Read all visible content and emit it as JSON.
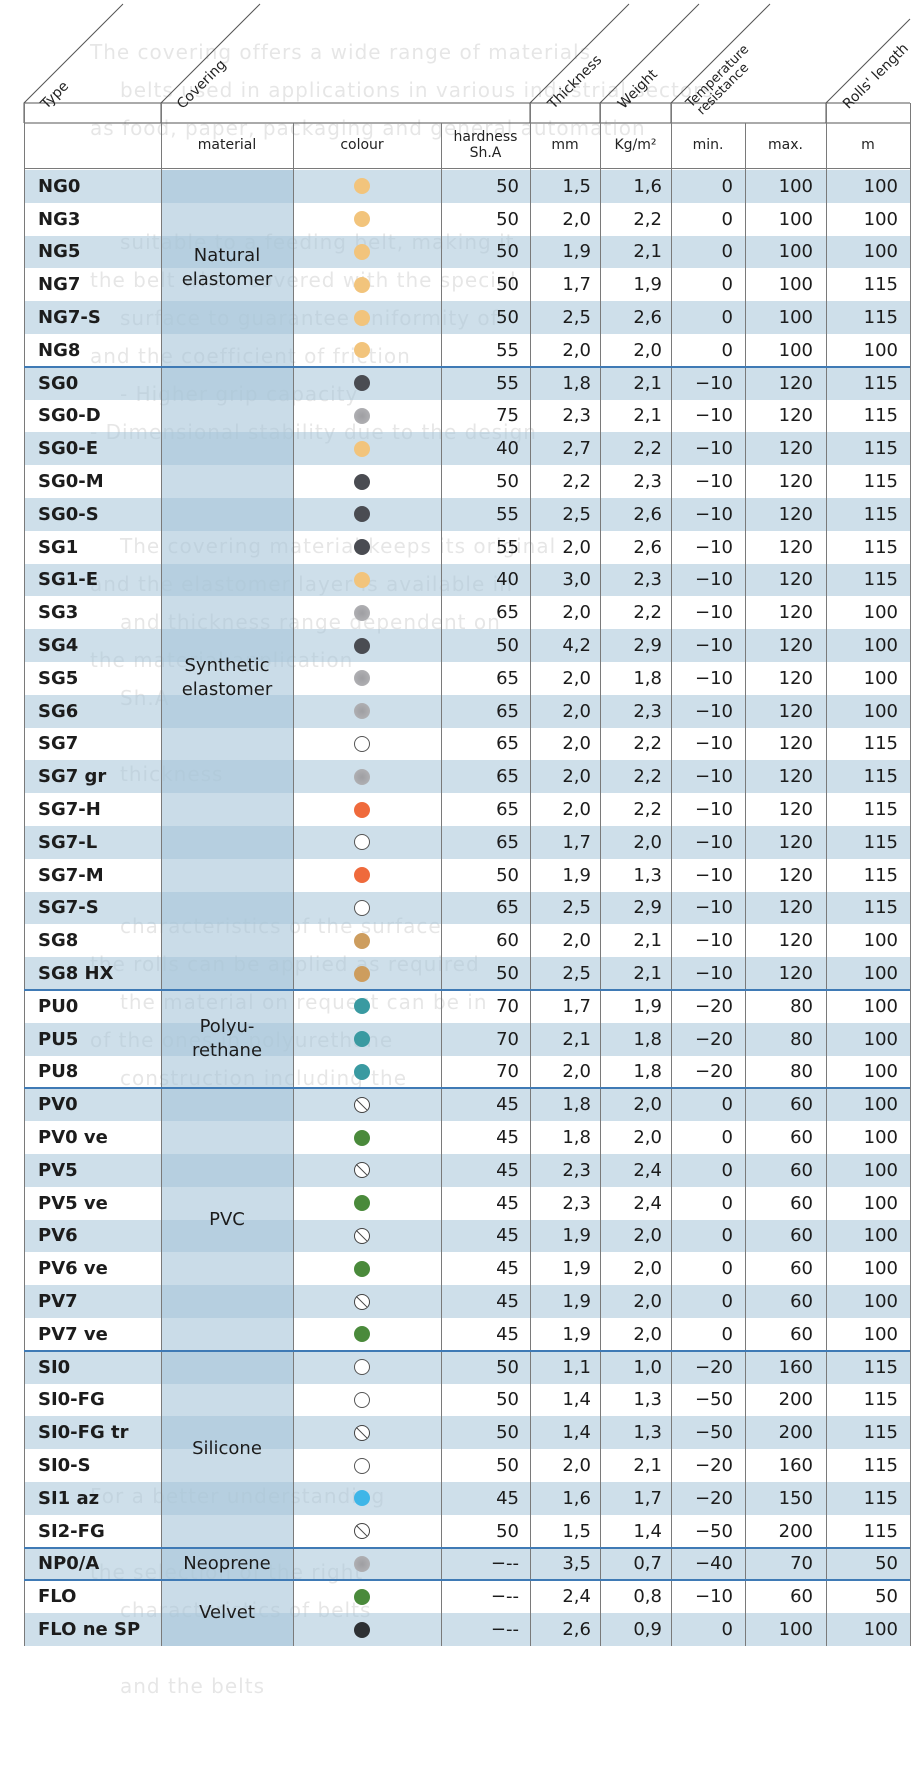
{
  "background_text": [
    "The covering offers a wide range of materials",
    "belts used in applications in various industrial sectors",
    "as food, paper, packaging and general automation",
    "",
    "",
    "suitable to a feeding belt, making it",
    "the belt when covered with the special",
    "surface to guarantee uniformity of",
    "and the coefficient of friction",
    "- Higher grip capacity",
    "- Dimensional stability due to the design",
    "",
    "",
    "The covering material keeps its original",
    "and the elastomer layer is available in",
    "and thickness range dependent on",
    "the material application",
    "Sh.A",
    "",
    "thickness",
    "",
    "",
    "",
    "characteristics of the surface",
    "the rolls can be applied as required",
    "the material on request can be in",
    "of the ones in polyurethane",
    "construction including the",
    "",
    "",
    "",
    "",
    "",
    "",
    "",
    "",
    "",
    "",
    "For a better understanding",
    "",
    "the selection of the right",
    "characteristics of belts",
    "",
    "and the belts"
  ],
  "header": {
    "type": "Type",
    "covering": "Covering",
    "thickness": "Thickness",
    "weight": "Weight",
    "temperature": "Temperature resistance",
    "rolls_length": "Rolls' length"
  },
  "subheader": {
    "material": "material",
    "colour": "colour",
    "hardness": "hardness Sh.A",
    "thickness_unit": "mm",
    "weight_unit": "Kg/m²",
    "min": "min.",
    "max": "max.",
    "length_unit": "m"
  },
  "groups": [
    {
      "label": "Natural elastomer",
      "start": 0,
      "end": 5
    },
    {
      "label": "Synthetic elastomer",
      "start": 6,
      "end": 24
    },
    {
      "label": "Polyu-rethane",
      "start": 25,
      "end": 27
    },
    {
      "label": "PVC",
      "start": 28,
      "end": 35
    },
    {
      "label": "Silicone",
      "start": 36,
      "end": 41
    },
    {
      "label": "Neoprene",
      "start": 42,
      "end": 42
    },
    {
      "label": "Velvet",
      "start": 43,
      "end": 44
    }
  ],
  "swatch_colors": {
    "beige": "#f2c47c",
    "dark": "#4a4c52",
    "gray": "#a8a8ab",
    "white": "#ffffff",
    "orange": "#ef6a3c",
    "tan": "#cd9d5e",
    "teal": "#3a9aa1",
    "none": "#ffffff",
    "green": "#4a8a3b",
    "lightblue": "#3eb6e8",
    "black": "#2e3134"
  },
  "rows": [
    {
      "type": "NG0",
      "colour": "beige",
      "hardness": "50",
      "mm": "1,5",
      "kg": "1,6",
      "min": "0",
      "max": "100",
      "m": "100"
    },
    {
      "type": "NG3",
      "colour": "beige",
      "hardness": "50",
      "mm": "2,0",
      "kg": "2,2",
      "min": "0",
      "max": "100",
      "m": "100"
    },
    {
      "type": "NG5",
      "colour": "beige",
      "hardness": "50",
      "mm": "1,9",
      "kg": "2,1",
      "min": "0",
      "max": "100",
      "m": "100"
    },
    {
      "type": "NG7",
      "colour": "beige",
      "hardness": "50",
      "mm": "1,7",
      "kg": "1,9",
      "min": "0",
      "max": "100",
      "m": "115"
    },
    {
      "type": "NG7-S",
      "colour": "beige",
      "hardness": "50",
      "mm": "2,5",
      "kg": "2,6",
      "min": "0",
      "max": "100",
      "m": "115"
    },
    {
      "type": "NG8",
      "colour": "beige",
      "hardness": "55",
      "mm": "2,0",
      "kg": "2,0",
      "min": "0",
      "max": "100",
      "m": "100"
    },
    {
      "type": "SG0",
      "colour": "dark",
      "hardness": "55",
      "mm": "1,8",
      "kg": "2,1",
      "min": "-10",
      "max": "120",
      "m": "115"
    },
    {
      "type": "SG0-D",
      "colour": "gray",
      "hardness": "75",
      "mm": "2,3",
      "kg": "2,1",
      "min": "-10",
      "max": "120",
      "m": "115"
    },
    {
      "type": "SG0-E",
      "colour": "beige",
      "hardness": "40",
      "mm": "2,7",
      "kg": "2,2",
      "min": "-10",
      "max": "120",
      "m": "115"
    },
    {
      "type": "SG0-M",
      "colour": "dark",
      "hardness": "50",
      "mm": "2,2",
      "kg": "2,3",
      "min": "-10",
      "max": "120",
      "m": "115"
    },
    {
      "type": "SG0-S",
      "colour": "dark",
      "hardness": "55",
      "mm": "2,5",
      "kg": "2,6",
      "min": "-10",
      "max": "120",
      "m": "115"
    },
    {
      "type": "SG1",
      "colour": "dark",
      "hardness": "55",
      "mm": "2,0",
      "kg": "2,6",
      "min": "-10",
      "max": "120",
      "m": "115"
    },
    {
      "type": "SG1-E",
      "colour": "beige",
      "hardness": "40",
      "mm": "3,0",
      "kg": "2,3",
      "min": "-10",
      "max": "120",
      "m": "115"
    },
    {
      "type": "SG3",
      "colour": "gray",
      "hardness": "65",
      "mm": "2,0",
      "kg": "2,2",
      "min": "-10",
      "max": "120",
      "m": "100"
    },
    {
      "type": "SG4",
      "colour": "dark",
      "hardness": "50",
      "mm": "4,2",
      "kg": "2,9",
      "min": "-10",
      "max": "120",
      "m": "100"
    },
    {
      "type": "SG5",
      "colour": "gray",
      "hardness": "65",
      "mm": "2,0",
      "kg": "1,8",
      "min": "-10",
      "max": "120",
      "m": "100"
    },
    {
      "type": "SG6",
      "colour": "gray",
      "hardness": "65",
      "mm": "2,0",
      "kg": "2,3",
      "min": "-10",
      "max": "120",
      "m": "100"
    },
    {
      "type": "SG7",
      "colour": "white",
      "hardness": "65",
      "mm": "2,0",
      "kg": "2,2",
      "min": "-10",
      "max": "120",
      "m": "115"
    },
    {
      "type": "SG7 gr",
      "colour": "gray",
      "hardness": "65",
      "mm": "2,0",
      "kg": "2,2",
      "min": "-10",
      "max": "120",
      "m": "115"
    },
    {
      "type": "SG7-H",
      "colour": "orange",
      "hardness": "65",
      "mm": "2,0",
      "kg": "2,2",
      "min": "-10",
      "max": "120",
      "m": "115"
    },
    {
      "type": "SG7-L",
      "colour": "white",
      "hardness": "65",
      "mm": "1,7",
      "kg": "2,0",
      "min": "-10",
      "max": "120",
      "m": "115"
    },
    {
      "type": "SG7-M",
      "colour": "orange",
      "hardness": "50",
      "mm": "1,9",
      "kg": "1,3",
      "min": "-10",
      "max": "120",
      "m": "115"
    },
    {
      "type": "SG7-S",
      "colour": "white",
      "hardness": "65",
      "mm": "2,5",
      "kg": "2,9",
      "min": "-10",
      "max": "120",
      "m": "115"
    },
    {
      "type": "SG8",
      "colour": "tan",
      "hardness": "60",
      "mm": "2,0",
      "kg": "2,1",
      "min": "-10",
      "max": "120",
      "m": "100"
    },
    {
      "type": "SG8 HX",
      "colour": "tan",
      "hardness": "50",
      "mm": "2,5",
      "kg": "2,1",
      "min": "-10",
      "max": "120",
      "m": "100"
    },
    {
      "type": "PU0",
      "colour": "teal",
      "hardness": "70",
      "mm": "1,7",
      "kg": "1,9",
      "min": "-20",
      "max": "80",
      "m": "100"
    },
    {
      "type": "PU5",
      "colour": "teal",
      "hardness": "70",
      "mm": "2,1",
      "kg": "1,8",
      "min": "-20",
      "max": "80",
      "m": "100"
    },
    {
      "type": "PU8",
      "colour": "teal",
      "hardness": "70",
      "mm": "2,0",
      "kg": "1,8",
      "min": "-20",
      "max": "80",
      "m": "100"
    },
    {
      "type": "PV0",
      "colour": "none",
      "hardness": "45",
      "mm": "1,8",
      "kg": "2,0",
      "min": "0",
      "max": "60",
      "m": "100"
    },
    {
      "type": "PV0 ve",
      "colour": "green",
      "hardness": "45",
      "mm": "1,8",
      "kg": "2,0",
      "min": "0",
      "max": "60",
      "m": "100"
    },
    {
      "type": "PV5",
      "colour": "none",
      "hardness": "45",
      "mm": "2,3",
      "kg": "2,4",
      "min": "0",
      "max": "60",
      "m": "100"
    },
    {
      "type": "PV5 ve",
      "colour": "green",
      "hardness": "45",
      "mm": "2,3",
      "kg": "2,4",
      "min": "0",
      "max": "60",
      "m": "100"
    },
    {
      "type": "PV6",
      "colour": "none",
      "hardness": "45",
      "mm": "1,9",
      "kg": "2,0",
      "min": "0",
      "max": "60",
      "m": "100"
    },
    {
      "type": "PV6 ve",
      "colour": "green",
      "hardness": "45",
      "mm": "1,9",
      "kg": "2,0",
      "min": "0",
      "max": "60",
      "m": "100"
    },
    {
      "type": "PV7",
      "colour": "none",
      "hardness": "45",
      "mm": "1,9",
      "kg": "2,0",
      "min": "0",
      "max": "60",
      "m": "100"
    },
    {
      "type": "PV7 ve",
      "colour": "green",
      "hardness": "45",
      "mm": "1,9",
      "kg": "2,0",
      "min": "0",
      "max": "60",
      "m": "100"
    },
    {
      "type": "SI0",
      "colour": "white",
      "hardness": "50",
      "mm": "1,1",
      "kg": "1,0",
      "min": "-20",
      "max": "160",
      "m": "115"
    },
    {
      "type": "SI0-FG",
      "colour": "white",
      "hardness": "50",
      "mm": "1,4",
      "kg": "1,3",
      "min": "-50",
      "max": "200",
      "m": "115"
    },
    {
      "type": "SI0-FG tr",
      "colour": "none",
      "hardness": "50",
      "mm": "1,4",
      "kg": "1,3",
      "min": "-50",
      "max": "200",
      "m": "115"
    },
    {
      "type": "SI0-S",
      "colour": "white",
      "hardness": "50",
      "mm": "2,0",
      "kg": "2,1",
      "min": "-20",
      "max": "160",
      "m": "115"
    },
    {
      "type": "SI1 az",
      "colour": "lightblue",
      "hardness": "45",
      "mm": "1,6",
      "kg": "1,7",
      "min": "-20",
      "max": "150",
      "m": "115"
    },
    {
      "type": "SI2-FG",
      "colour": "none",
      "hardness": "50",
      "mm": "1,5",
      "kg": "1,4",
      "min": "-50",
      "max": "200",
      "m": "115"
    },
    {
      "type": "NP0/A",
      "colour": "gray",
      "hardness": "---",
      "mm": "3,5",
      "kg": "0,7",
      "min": "-40",
      "max": "70",
      "m": "50"
    },
    {
      "type": "FLO",
      "colour": "green",
      "hardness": "---",
      "mm": "2,4",
      "kg": "0,8",
      "min": "-10",
      "max": "60",
      "m": "50"
    },
    {
      "type": "FLO ne SP",
      "colour": "black",
      "hardness": "---",
      "mm": "2,6",
      "kg": "0,9",
      "min": "0",
      "max": "100",
      "m": "100"
    }
  ]
}
